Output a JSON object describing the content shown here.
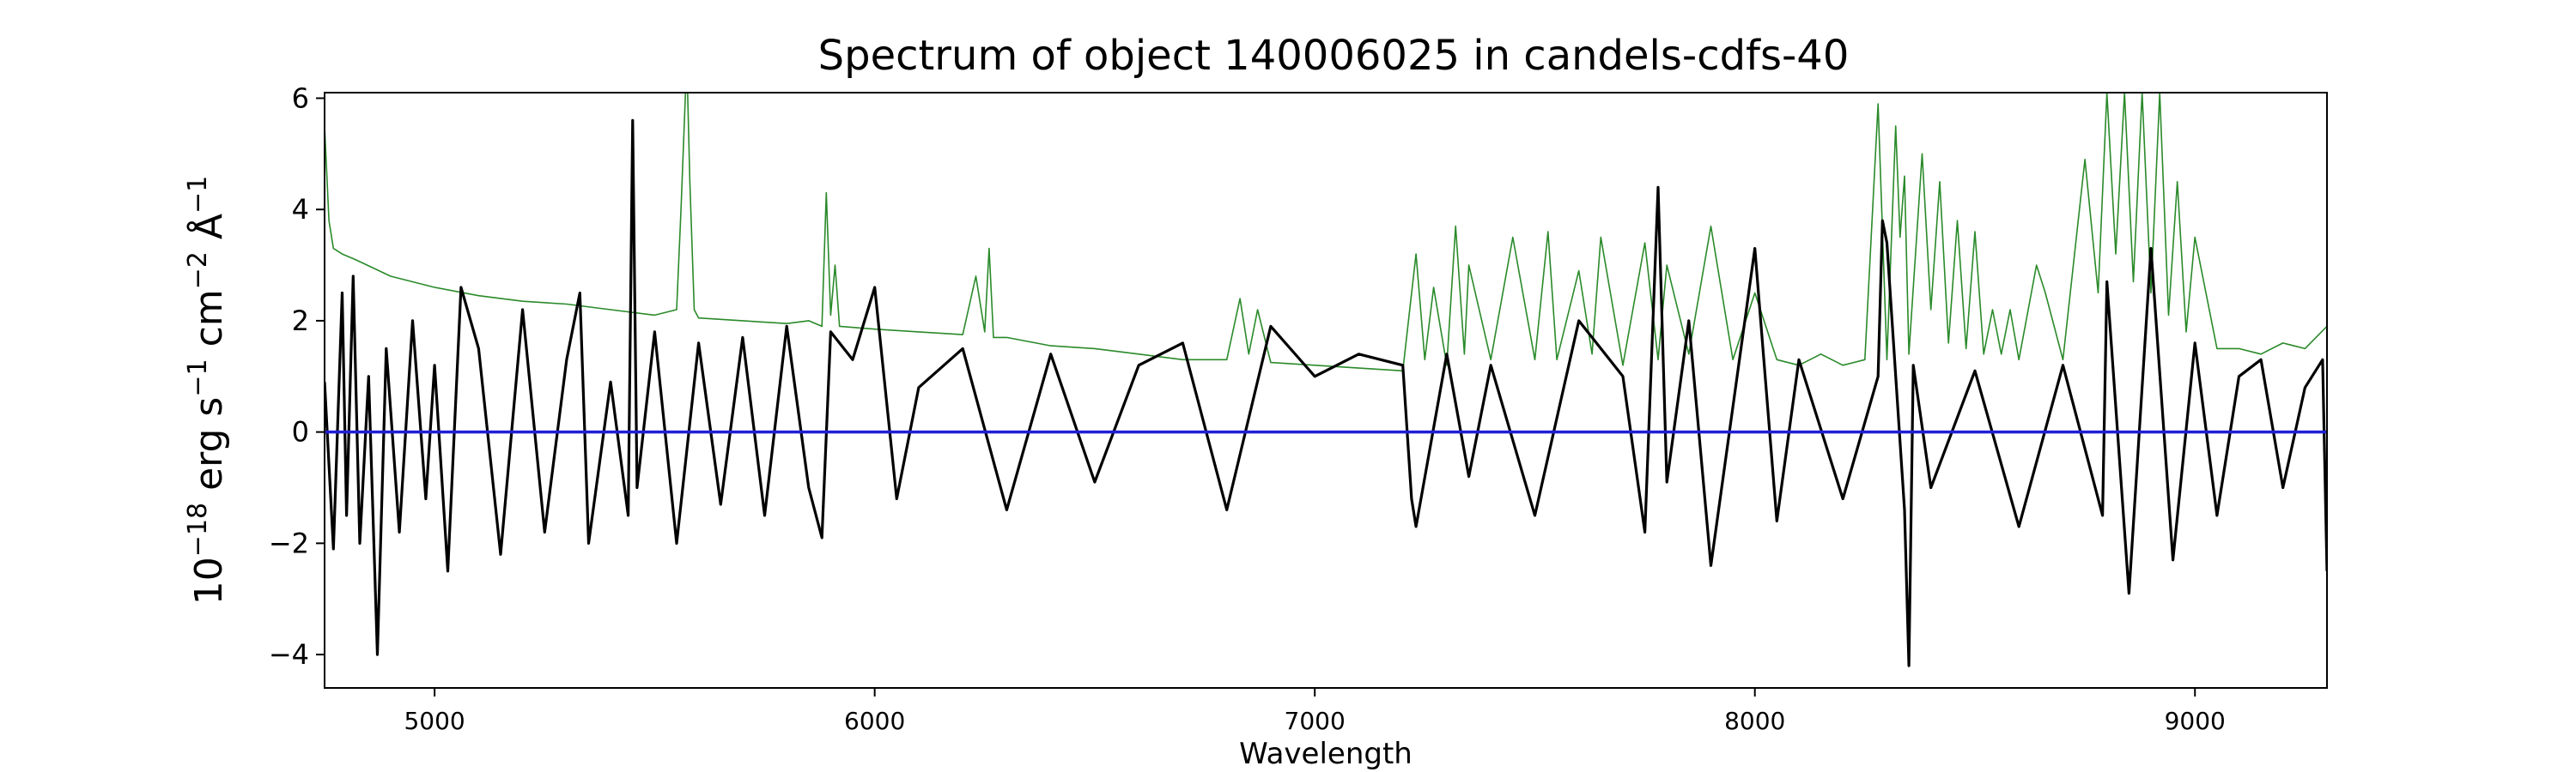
{
  "chart_data": {
    "type": "line",
    "title": "Spectrum of object 140006025 in candels-cdfs-40",
    "xlabel": "Wavelength",
    "ylabel": {
      "base": "10",
      "exp1": "−18",
      "unit1": " erg s",
      "exp2": "−1",
      "unit2": " cm",
      "exp3": "−2",
      "unit3": " Å",
      "exp4": "−1"
    },
    "xlim": [
      4750,
      9300
    ],
    "ylim": [
      -4.6,
      6.1
    ],
    "xticks": [
      5000,
      6000,
      7000,
      8000,
      9000
    ],
    "xtick_labels": [
      "5000",
      "6000",
      "7000",
      "8000",
      "9000"
    ],
    "yticks": [
      -4,
      -2,
      0,
      2,
      4,
      6
    ],
    "ytick_labels": [
      "−4",
      "−2",
      "0",
      "2",
      "4",
      "6"
    ],
    "grid": false,
    "series": [
      {
        "role": "flux",
        "color": "#000000",
        "x": [
          4750,
          4770,
          4790,
          4800,
          4815,
          4830,
          4850,
          4870,
          4890,
          4920,
          4950,
          4980,
          5000,
          5030,
          5060,
          5100,
          5150,
          5200,
          5250,
          5300,
          5330,
          5350,
          5400,
          5440,
          5450,
          5460,
          5500,
          5550,
          5600,
          5650,
          5700,
          5750,
          5800,
          5850,
          5880,
          5900,
          5950,
          6000,
          6050,
          6100,
          6200,
          6300,
          6400,
          6500,
          6600,
          6700,
          6800,
          6900,
          7000,
          7100,
          7200,
          7220,
          7230,
          7300,
          7350,
          7400,
          7500,
          7600,
          7700,
          7750,
          7780,
          7800,
          7850,
          7900,
          8000,
          8050,
          8100,
          8200,
          8280,
          8290,
          8300,
          8340,
          8350,
          8360,
          8400,
          8500,
          8600,
          8700,
          8790,
          8800,
          8850,
          8900,
          8950,
          9000,
          9050,
          9100,
          9150,
          9200,
          9250,
          9290,
          9300
        ],
        "y": [
          0.9,
          -2.1,
          2.5,
          -1.5,
          2.8,
          -2.0,
          1.0,
          -4.0,
          1.5,
          -1.8,
          2.0,
          -1.2,
          1.2,
          -2.5,
          2.6,
          1.5,
          -2.2,
          2.2,
          -1.8,
          1.3,
          2.5,
          -2.0,
          0.9,
          -1.5,
          5.6,
          -1.0,
          1.8,
          -2.0,
          1.6,
          -1.3,
          1.7,
          -1.5,
          1.9,
          -1.0,
          -1.9,
          1.8,
          1.3,
          2.6,
          -1.2,
          0.8,
          1.5,
          -1.4,
          1.4,
          -0.9,
          1.2,
          1.6,
          -1.4,
          1.9,
          1.0,
          1.4,
          1.2,
          -1.2,
          -1.7,
          1.4,
          -0.8,
          1.2,
          -1.5,
          2.0,
          1.0,
          -1.8,
          4.4,
          -0.9,
          2.0,
          -2.4,
          3.3,
          -1.6,
          1.3,
          -1.2,
          1.0,
          3.8,
          3.4,
          -1.4,
          -4.2,
          1.2,
          -1.0,
          1.1,
          -1.7,
          1.2,
          -1.5,
          2.7,
          -2.9,
          3.3,
          -2.3,
          1.6,
          -1.5,
          1.0,
          1.3,
          -1.0,
          0.8,
          1.3,
          -2.5
        ]
      },
      {
        "role": "error",
        "color": "#2a8a2a",
        "x": [
          4750,
          4760,
          4770,
          4790,
          4820,
          4900,
          5000,
          5100,
          5200,
          5300,
          5400,
          5500,
          5550,
          5560,
          5570,
          5575,
          5580,
          5590,
          5600,
          5700,
          5800,
          5850,
          5880,
          5890,
          5900,
          5910,
          5920,
          6000,
          6100,
          6200,
          6230,
          6250,
          6260,
          6270,
          6300,
          6400,
          6500,
          6600,
          6700,
          6800,
          6830,
          6850,
          6870,
          6900,
          7000,
          7100,
          7200,
          7230,
          7250,
          7270,
          7300,
          7320,
          7340,
          7350,
          7400,
          7450,
          7500,
          7530,
          7550,
          7600,
          7630,
          7650,
          7700,
          7750,
          7780,
          7800,
          7850,
          7900,
          7950,
          8000,
          8050,
          8100,
          8150,
          8200,
          8250,
          8280,
          8300,
          8320,
          8330,
          8340,
          8350,
          8380,
          8400,
          8420,
          8440,
          8460,
          8480,
          8500,
          8520,
          8540,
          8560,
          8580,
          8600,
          8640,
          8660,
          8700,
          8750,
          8780,
          8800,
          8820,
          8840,
          8860,
          8880,
          8900,
          8920,
          8940,
          8960,
          8980,
          9000,
          9050,
          9100,
          9150,
          9200,
          9250,
          9300
        ],
        "y": [
          5.5,
          3.8,
          3.3,
          3.2,
          3.1,
          2.8,
          2.6,
          2.45,
          2.35,
          2.3,
          2.2,
          2.1,
          2.2,
          4.0,
          6.1,
          6.1,
          4.5,
          2.2,
          2.05,
          2.0,
          1.95,
          2.0,
          1.9,
          4.3,
          2.1,
          3.0,
          1.9,
          1.85,
          1.8,
          1.75,
          2.8,
          1.8,
          3.3,
          1.7,
          1.7,
          1.55,
          1.5,
          1.4,
          1.3,
          1.3,
          2.4,
          1.4,
          2.2,
          1.25,
          1.2,
          1.15,
          1.1,
          3.2,
          1.3,
          2.6,
          1.2,
          3.7,
          1.4,
          3.0,
          1.3,
          3.5,
          1.3,
          3.6,
          1.3,
          2.9,
          1.4,
          3.5,
          1.2,
          3.4,
          1.3,
          3.0,
          1.4,
          3.7,
          1.3,
          2.5,
          1.3,
          1.2,
          1.4,
          1.2,
          1.3,
          5.9,
          1.3,
          5.5,
          3.5,
          4.6,
          1.4,
          5.0,
          2.2,
          4.5,
          1.6,
          3.8,
          1.5,
          3.6,
          1.4,
          2.2,
          1.4,
          2.2,
          1.3,
          3.0,
          2.5,
          1.3,
          4.9,
          2.5,
          6.1,
          3.2,
          6.1,
          2.7,
          6.1,
          2.5,
          6.1,
          2.1,
          4.5,
          1.8,
          3.5,
          1.5,
          1.5,
          1.4,
          1.6,
          1.5,
          1.9
        ]
      },
      {
        "role": "zero",
        "color": "#1f1fd6",
        "x": [
          4750,
          9300
        ],
        "y": [
          0,
          0
        ]
      }
    ]
  }
}
